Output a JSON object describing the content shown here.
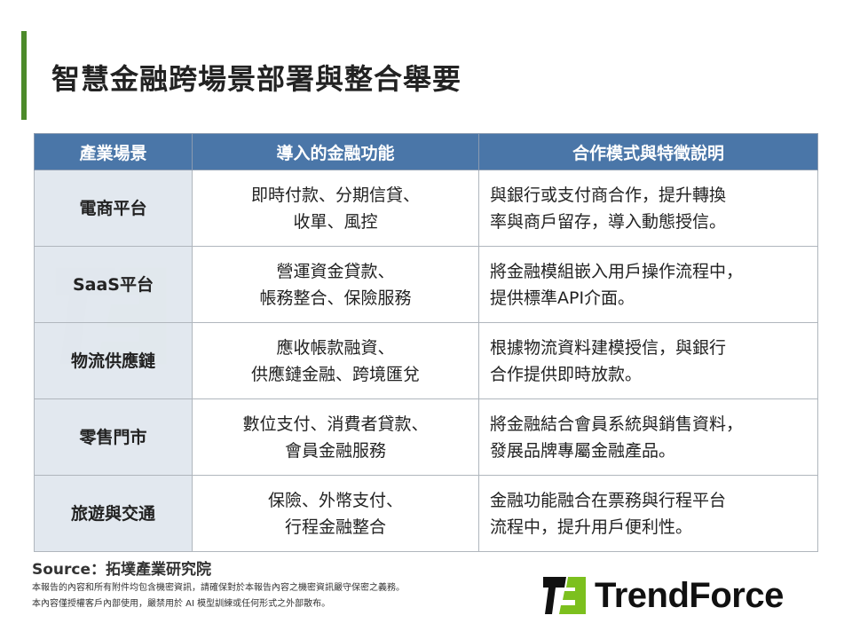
{
  "title": "智慧金融跨場景部署與整合舉要",
  "table": {
    "headers": [
      "產業場景",
      "導入的金融功能",
      "合作模式與特徵說明"
    ],
    "rows": [
      {
        "scene": "電商平台",
        "functions": [
          "即時付款、分期信貸、",
          "收單、風控"
        ],
        "model": [
          "與銀行或支付商合作，提升轉換",
          "率與商戶留存，導入動態授信。"
        ]
      },
      {
        "scene": "SaaS平台",
        "functions": [
          "營運資金貸款、",
          "帳務整合、保險服務"
        ],
        "model": [
          "將金融模組嵌入用戶操作流程中，",
          "提供標準API介面。"
        ]
      },
      {
        "scene": "物流供應鏈",
        "functions": [
          "應收帳款融資、",
          "供應鏈金融、跨境匯兌"
        ],
        "model": [
          "根據物流資料建模授信，與銀行",
          "合作提供即時放款。"
        ]
      },
      {
        "scene": "零售門市",
        "functions": [
          "數位支付、消費者貸款、",
          "會員金融服務"
        ],
        "model": [
          "將金融結合會員系統與銷售資料，",
          "發展品牌專屬金融產品。"
        ]
      },
      {
        "scene": "旅遊與交通",
        "functions": [
          "保險、外幣支付、",
          "行程金融整合"
        ],
        "model": [
          "金融功能融合在票務與行程平台",
          "流程中，提升用戶便利性。"
        ]
      }
    ]
  },
  "source": "Source：拓墣產業研究院",
  "notes": [
    "本報告的內容和所有附件均包含機密資訊，請確保對於本報告內容之機密資訊嚴守保密之義務。",
    "本內容僅授權客戶內部使用，嚴禁用於 AI 模型訓練或任何形式之外部散布。"
  ],
  "logo": {
    "text": "TrendForce",
    "colors": {
      "black": "#111111",
      "green": "#7cc01e"
    }
  },
  "colors": {
    "header": "#4a76a8",
    "accent": "#4c8a2a",
    "first_col": "#e0e6ee"
  }
}
